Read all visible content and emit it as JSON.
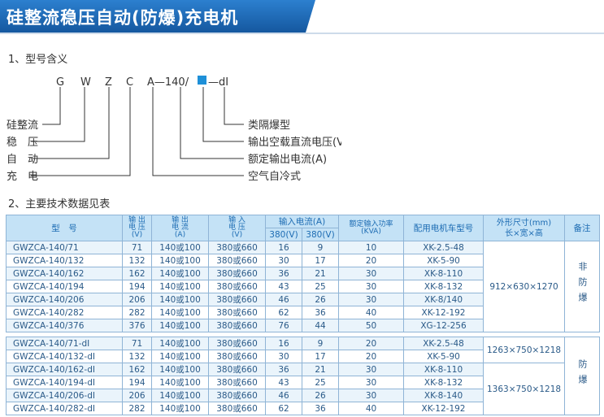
{
  "header": {
    "title": "硅整流稳压自动(防爆)充电机"
  },
  "section1": {
    "heading": "1、型号含义",
    "code": [
      "G",
      "W",
      "Z",
      "C",
      "A—140/",
      "—dI"
    ],
    "left_labels": [
      "硅整流",
      "稳　压",
      "自　动",
      "充　电"
    ],
    "right_labels": [
      "类隔爆型",
      "输出空载直流电压(V)",
      "额定输出电流(A)",
      "空气自冷式"
    ]
  },
  "section2": {
    "heading": "2、主要技术数据见表",
    "table": {
      "head": {
        "model": "型　号",
        "out_voltage": [
          "输 出",
          "电 压",
          "(V)"
        ],
        "out_current": [
          "输 出",
          "电 流",
          "(A)"
        ],
        "in_voltage": [
          "输 入",
          "电 压",
          "(V)"
        ],
        "in_current": "输入电流(A)",
        "in_current_sub": [
          "380(V)",
          "380(V)"
        ],
        "power": [
          "额定输入功率",
          "(KVA)"
        ],
        "car": "配用电机车型号",
        "size": [
          "外形尺寸(mm)",
          "长×宽×高"
        ],
        "remark": "备注"
      },
      "groups": [
        {
          "rows": [
            [
              "GWZCA-140/71",
              "71",
              "140或100",
              "380或660",
              "16",
              "9",
              "10",
              "XK-2.5-48"
            ],
            [
              "GWZCA-140/132",
              "132",
              "140或100",
              "380或660",
              "30",
              "17",
              "20",
              "XK-5-90"
            ],
            [
              "GWZCA-140/162",
              "162",
              "140或100",
              "380或660",
              "36",
              "21",
              "30",
              "XK-8-110"
            ],
            [
              "GWZCA-140/194",
              "194",
              "140或100",
              "380或660",
              "43",
              "25",
              "30",
              "XK-8-132"
            ],
            [
              "GWZCA-140/206",
              "206",
              "140或100",
              "380或660",
              "46",
              "26",
              "30",
              "XK-8/140"
            ],
            [
              "GWZCA-140/282",
              "282",
              "140或100",
              "380或660",
              "62",
              "36",
              "40",
              "XK-12-192"
            ],
            [
              "GWZCA-140/376",
              "376",
              "140或100",
              "380或660",
              "76",
              "44",
              "50",
              "XG-12-256"
            ]
          ],
          "sizes": [
            "912×630×1270"
          ],
          "remark": "非防爆"
        },
        {
          "rows": [
            [
              "GWZCA-140/71-dI",
              "71",
              "140或100",
              "380或660",
              "16",
              "9",
              "20",
              "XK-2.5-48"
            ],
            [
              "GWZCA-140/132-dI",
              "132",
              "140或100",
              "380或660",
              "30",
              "17",
              "20",
              "XK-5-90"
            ],
            [
              "GWZCA-140/162-dI",
              "162",
              "140或100",
              "380或660",
              "36",
              "21",
              "30",
              "XK-8-110"
            ],
            [
              "GWZCA-140/194-dI",
              "194",
              "140或100",
              "380或660",
              "43",
              "25",
              "30",
              "XK-8-132"
            ],
            [
              "GWZCA-140/206-dI",
              "206",
              "140或100",
              "380或660",
              "46",
              "26",
              "30",
              "XK-8-140"
            ],
            [
              "GWZCA-140/282-dI",
              "282",
              "140或100",
              "380或660",
              "62",
              "36",
              "40",
              "XK-12-192"
            ]
          ],
          "sizes": [
            "1263×750×1218",
            "1363×750×1218"
          ],
          "remark": "防爆"
        }
      ]
    }
  }
}
